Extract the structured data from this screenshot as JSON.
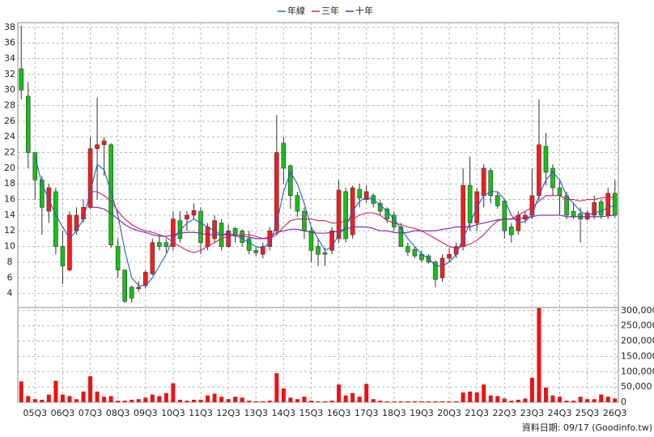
{
  "chart_data": {
    "type": "candlestick",
    "categories": [
      null,
      null,
      "05Q3",
      null,
      null,
      null,
      "06Q3",
      null,
      null,
      null,
      "07Q3",
      null,
      null,
      null,
      "08Q3",
      null,
      null,
      null,
      "09Q3",
      null,
      null,
      null,
      "10Q3",
      null,
      null,
      null,
      "11Q3",
      null,
      null,
      null,
      "12Q3",
      null,
      null,
      null,
      "13Q3",
      null,
      null,
      null,
      "14Q3",
      null,
      null,
      null,
      "15Q3",
      null,
      null,
      null,
      "16Q3",
      null,
      null,
      null,
      "17Q3",
      null,
      null,
      null,
      "18Q3",
      null,
      null,
      null,
      "19Q3",
      null,
      null,
      null,
      "20Q3",
      null,
      null,
      null,
      "21Q3",
      null,
      null,
      null,
      "22Q3",
      null,
      null,
      null,
      "23Q3",
      null,
      null,
      null,
      "24Q3",
      null,
      null,
      null,
      "25Q3",
      null,
      null,
      null,
      "26Q3"
    ],
    "open": [
      32.7,
      29.2,
      22,
      18.5,
      14.5,
      17,
      10,
      7,
      12,
      13.5,
      15,
      22.5,
      23,
      23,
      10,
      7,
      4.8,
      4.6,
      5,
      6.5,
      10.5,
      10.5,
      10,
      13.3,
      13.5,
      14,
      14.5,
      10,
      11,
      13,
      10,
      12.3,
      12,
      11,
      9.5,
      9,
      10,
      12,
      23.2,
      20.3,
      16.5,
      14.5,
      12,
      10,
      9.2,
      9.5,
      11,
      17,
      11.5,
      17.3,
      16,
      16.5,
      15.5,
      14.8,
      14,
      12.5,
      10,
      9.6,
      9,
      8.8,
      8,
      6,
      8.5,
      9,
      10,
      17.8,
      13,
      16.5,
      19.7,
      16.5,
      15.8,
      12.5,
      12,
      13.5,
      14,
      16.5,
      22.8,
      20,
      17.5,
      16.5,
      14.5,
      14.2,
      13.5,
      14,
      15.7,
      14,
      16.8
    ],
    "high": [
      38.2,
      31,
      22,
      19,
      18,
      17.5,
      12,
      14.5,
      15,
      16,
      24,
      29,
      24,
      23.2,
      11,
      7,
      5,
      5.6,
      7,
      11,
      11.5,
      11,
      14.5,
      14.5,
      14.5,
      15.5,
      15,
      13,
      14,
      13.5,
      12.8,
      12.5,
      12.2,
      12,
      10,
      10.5,
      12.5,
      26.8,
      24,
      20.5,
      17,
      15,
      12.5,
      11,
      9.8,
      12.5,
      18.5,
      17.5,
      17.8,
      18,
      17.8,
      16.8,
      16,
      15,
      14.5,
      13,
      10.5,
      10,
      9.5,
      9,
      8.2,
      9,
      9.8,
      10.5,
      20,
      21.5,
      17.5,
      20.5,
      20,
      17,
      16,
      13,
      14.5,
      14.5,
      20,
      28.8,
      24.5,
      20.5,
      18.5,
      17,
      15.5,
      15,
      14.6,
      16.5,
      16,
      17.5,
      18.5
    ],
    "low": [
      28.8,
      20,
      16,
      11.5,
      13,
      9,
      5.2,
      6.8,
      11.5,
      13,
      14.8,
      16,
      19,
      9.8,
      6,
      2.8,
      2.8,
      4.2,
      4.6,
      6.3,
      9.5,
      9.2,
      9.5,
      10.5,
      12,
      13.5,
      9,
      9.5,
      10.5,
      9.5,
      9.8,
      10.5,
      10,
      9,
      8.8,
      8.5,
      9.5,
      11.5,
      18,
      14.8,
      13.8,
      11,
      8,
      7.5,
      7.5,
      9,
      10.5,
      10.5,
      11,
      15,
      15.6,
      15,
      14,
      13,
      12,
      10,
      8.8,
      8.5,
      8,
      7.8,
      4.8,
      5.5,
      8,
      8.5,
      9.5,
      12,
      12,
      15,
      15.5,
      14.8,
      11,
      10.5,
      11.5,
      13,
      13.5,
      16,
      17.8,
      16.5,
      14,
      13.5,
      13.5,
      10.5,
      13.3,
      13.5,
      13.5,
      13.5,
      13.7
    ],
    "close": [
      30,
      22,
      18.5,
      15,
      17.5,
      10,
      7.5,
      14,
      14,
      15,
      22.5,
      23,
      23.5,
      10.2,
      7,
      3,
      3.4,
      4.8,
      6.7,
      10.5,
      10,
      10,
      13.5,
      11,
      14,
      14.6,
      10.5,
      12.5,
      13.3,
      10,
      12,
      11.5,
      10.5,
      9.5,
      9.2,
      10,
      12,
      22,
      20,
      16.5,
      14.5,
      12,
      9.5,
      9,
      9,
      12,
      17.2,
      11,
      17.5,
      16.2,
      17,
      15.5,
      14.5,
      13.5,
      12.5,
      10,
      9.3,
      8.8,
      8.3,
      8,
      5.8,
      8.5,
      9,
      10,
      17.8,
      13,
      17,
      20,
      16.5,
      15.2,
      12,
      11.5,
      14,
      14,
      16.5,
      23,
      19.5,
      17.5,
      16.5,
      14,
      13.8,
      13.5,
      14.3,
      15.6,
      14,
      16.8,
      14
    ],
    "up_color": "#ff1a1a",
    "down_color": "#12c312",
    "ylim": [
      2.2,
      38.6
    ],
    "yticks": [
      4,
      6,
      8,
      10,
      12,
      14,
      16,
      18,
      20,
      22,
      24,
      26,
      28,
      30,
      32,
      34,
      36,
      38
    ],
    "grid": true,
    "lines": [
      {
        "name": "年線",
        "color": "#1f5fc4",
        "values": [
          null,
          null,
          21.5,
          18,
          16,
          14,
          12.5,
          11,
          12,
          13.5,
          17,
          20.5,
          19.8,
          17,
          14,
          9.5,
          6,
          5,
          5,
          6,
          7.5,
          9,
          11,
          12,
          13,
          13.5,
          13,
          12.5,
          12,
          11.5,
          11.7,
          11.5,
          11,
          10.5,
          10,
          9.8,
          10.5,
          13,
          17,
          19.5,
          18,
          15.5,
          12.5,
          11,
          9.5,
          10,
          11.5,
          12.5,
          14.5,
          15.8,
          16.3,
          16,
          15.3,
          14.5,
          13.5,
          12.3,
          11,
          10,
          9,
          8.5,
          7.5,
          7.5,
          8,
          9,
          11,
          13,
          15,
          16.5,
          17,
          17,
          16,
          14,
          13,
          13.2,
          14,
          16.5,
          18.5,
          19.5,
          18.5,
          16.5,
          15.5,
          14.5,
          14,
          14.3,
          14.5,
          15,
          15.2
        ]
      },
      {
        "name": "三年",
        "color": "#d81b6a",
        "values": [
          null,
          null,
          null,
          null,
          null,
          null,
          null,
          null,
          null,
          null,
          17,
          17,
          16.5,
          15.8,
          14.5,
          13.5,
          12.8,
          12.3,
          12,
          11.8,
          11.5,
          11.2,
          10.5,
          10,
          9.5,
          9.2,
          9.5,
          10,
          10.5,
          11,
          11.3,
          11.5,
          11.5,
          11.5,
          11.3,
          11,
          11,
          11.5,
          12.5,
          13.3,
          13.5,
          13.5,
          13.5,
          13.3,
          13.3,
          13,
          13,
          13.3,
          13.5,
          14,
          14.3,
          14.3,
          14,
          13.3,
          13,
          12.8,
          12.5,
          12.3,
          12,
          11.5,
          11,
          10.5,
          10,
          9.8,
          10,
          10.3,
          10.8,
          11.5,
          12.5,
          13.3,
          13.5,
          13.5,
          14,
          14.5,
          15,
          15.8,
          16.5,
          16.5,
          16.5,
          16,
          16,
          15.8,
          16,
          16,
          16.2,
          16.3,
          16.3
        ]
      },
      {
        "name": "十年",
        "color": "#7b1fa8",
        "values": [
          null,
          null,
          null,
          null,
          null,
          null,
          null,
          null,
          null,
          null,
          15,
          15,
          14.8,
          14.2,
          13.5,
          12.8,
          12.3,
          12,
          11.8,
          11.5,
          11.3,
          11.3,
          11.5,
          11.7,
          11.8,
          11.8,
          11.7,
          11.5,
          11.5,
          11.5,
          11.5,
          11.3,
          11.3,
          11.2,
          11,
          11,
          11.2,
          11.8,
          12,
          12.2,
          12.2,
          12,
          11.8,
          11.7,
          11.7,
          11.8,
          12,
          12.2,
          12.5,
          12.5,
          12.5,
          12.3,
          12,
          12,
          11.8,
          11.7,
          11.8,
          12,
          12,
          12,
          12,
          12.2,
          12.3,
          12.5,
          12.5,
          12.5,
          12.8,
          13,
          13.2,
          13.4,
          13.5,
          13.5,
          13.5,
          13.7,
          13.8,
          14,
          14,
          14,
          14,
          13.8,
          13.8,
          13.8,
          13.8,
          13.8,
          13.8,
          13.9,
          14
        ]
      }
    ],
    "volume": {
      "color": "#ee1111",
      "values": [
        68000,
        20000,
        10000,
        8000,
        25000,
        70000,
        25000,
        20000,
        10000,
        35000,
        85000,
        35000,
        18000,
        20000,
        5000,
        5000,
        8000,
        10000,
        15000,
        25000,
        20000,
        30000,
        62000,
        8000,
        5000,
        8000,
        8000,
        22000,
        28000,
        18000,
        10000,
        18000,
        15000,
        5000,
        3000,
        3000,
        5000,
        95000,
        45000,
        15000,
        10000,
        18000,
        5000,
        3000,
        3000,
        5000,
        58000,
        22000,
        30000,
        18000,
        60000,
        10000,
        5000,
        3000,
        3000,
        3000,
        3000,
        3000,
        3000,
        3000,
        3000,
        3000,
        3000,
        3000,
        32000,
        35000,
        32000,
        58000,
        22000,
        20000,
        12000,
        5000,
        8000,
        12000,
        80000,
        308000,
        48000,
        22000,
        18000,
        5000,
        5000,
        18000,
        10000,
        10000,
        25000,
        18000,
        12000
      ],
      "ylim": [
        0,
        310000
      ],
      "yticks": [
        0,
        {
          "value": 50000,
          "label": "50,000"
        },
        {
          "value": 100000,
          "label": "100,000"
        },
        {
          "value": 150000,
          "label": "150,000"
        },
        {
          "value": 200000,
          "label": "200,000"
        },
        {
          "value": 250000,
          "label": "250,000"
        },
        {
          "value": 300000,
          "label": "300,000"
        }
      ]
    },
    "source_note": "資料日期: 09/17 (Goodinfo.tw)"
  }
}
